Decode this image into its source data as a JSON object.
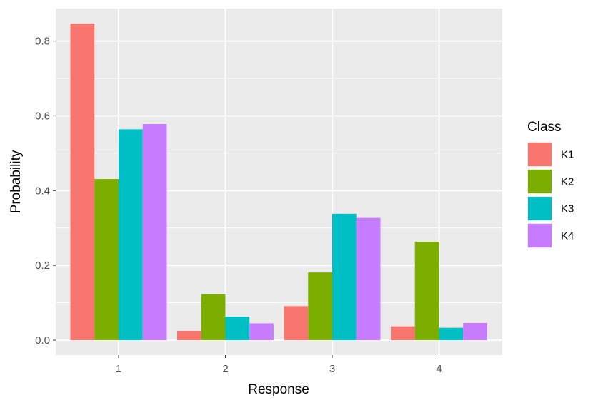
{
  "chart_data": {
    "type": "bar",
    "categories": [
      "1",
      "2",
      "3",
      "4"
    ],
    "series": [
      {
        "name": "K1",
        "values": [
          0.847,
          0.025,
          0.091,
          0.037
        ]
      },
      {
        "name": "K2",
        "values": [
          0.431,
          0.123,
          0.181,
          0.263
        ]
      },
      {
        "name": "K3",
        "values": [
          0.564,
          0.063,
          0.338,
          0.033
        ]
      },
      {
        "name": "K4",
        "values": [
          0.578,
          0.045,
          0.327,
          0.046
        ]
      }
    ],
    "colors": [
      "#F8766D",
      "#7CAE00",
      "#00BFC4",
      "#C77CFF"
    ],
    "xlabel": "Response",
    "ylabel": "Probability",
    "ylim": [
      -0.04,
      0.887
    ],
    "yticks": [
      0.0,
      0.2,
      0.4,
      0.6,
      0.8
    ],
    "ytick_labels": [
      "0.0",
      "0.2",
      "0.4",
      "0.6",
      "0.8"
    ],
    "grid": true,
    "legend_title": "Class",
    "legend_position": "right"
  }
}
